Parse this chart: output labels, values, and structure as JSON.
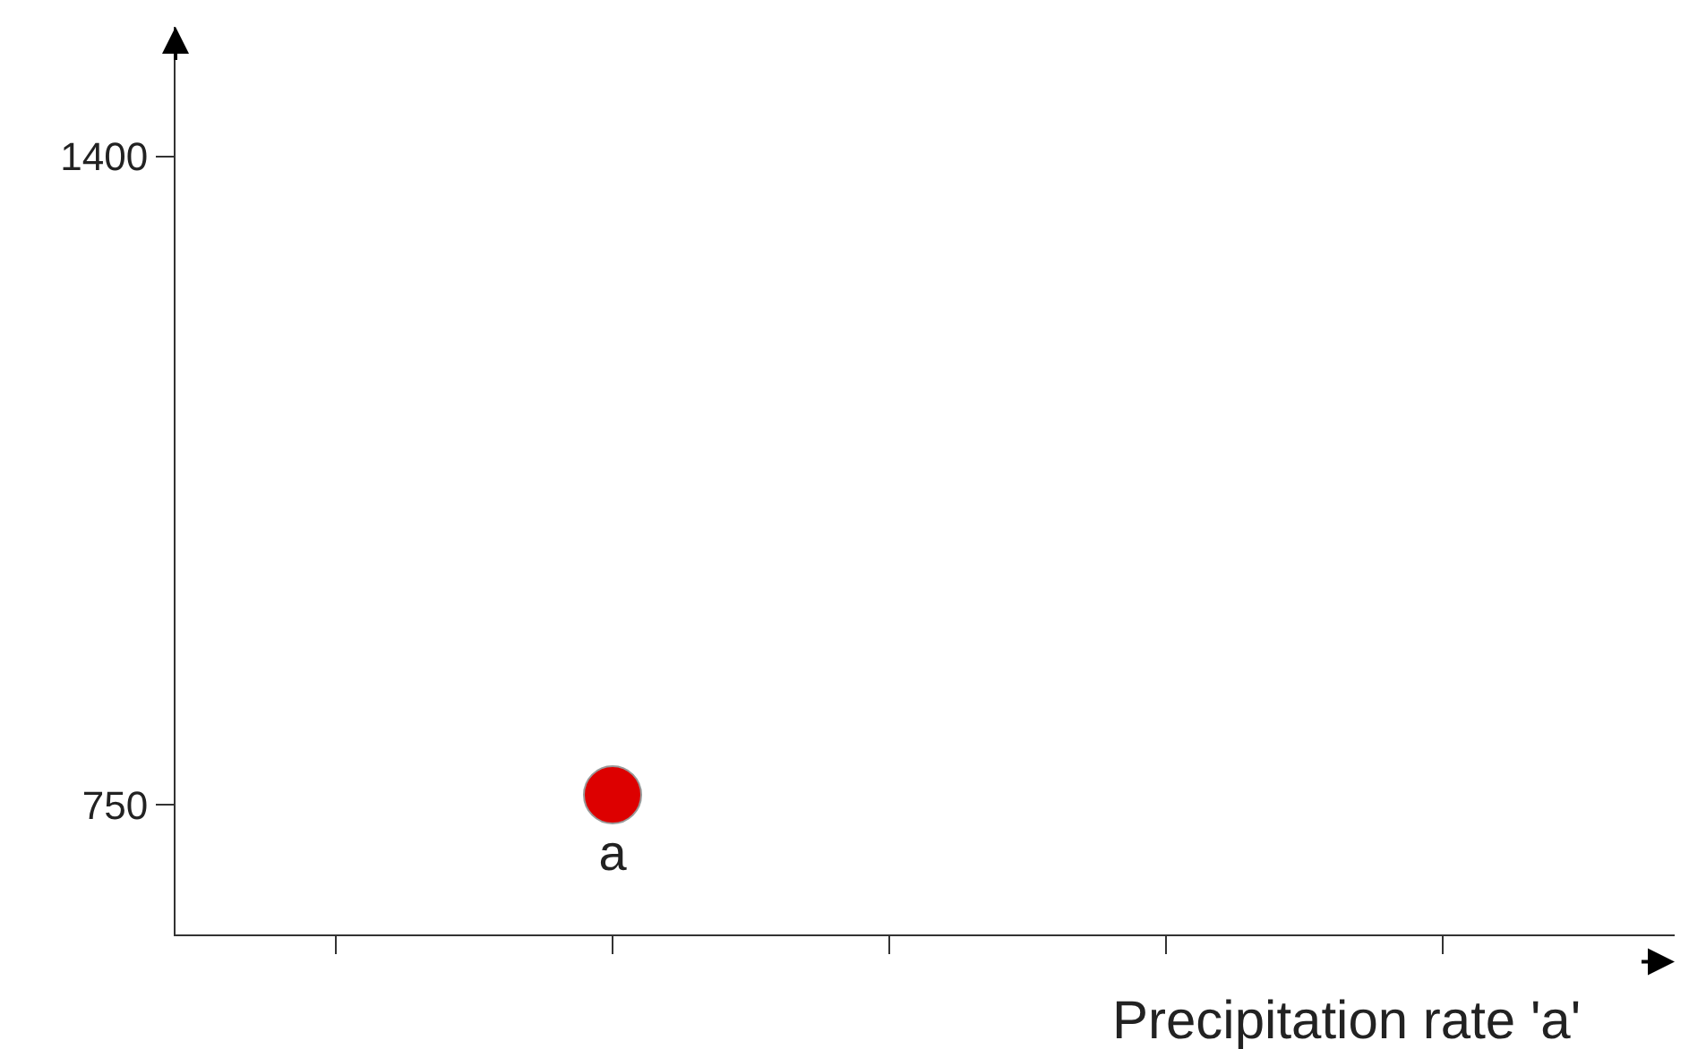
{
  "chart_data": {
    "type": "scatter",
    "xlabel": "Precipitation rate 'a'",
    "categories": [
      null,
      null,
      null,
      null,
      null
    ],
    "series": [
      {
        "name": "a",
        "color": "#dd0000",
        "values": [
          null,
          760,
          null,
          null,
          null
        ]
      }
    ],
    "ylim": [
      620,
      1530
    ],
    "yticks": [
      750,
      1400
    ],
    "grid": false,
    "legend": false,
    "marker": "circle"
  }
}
